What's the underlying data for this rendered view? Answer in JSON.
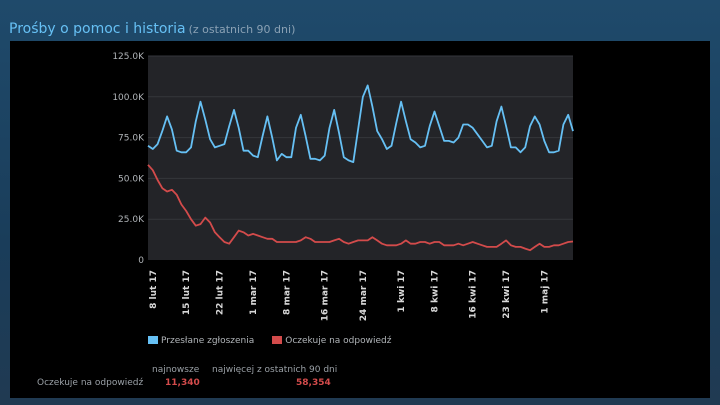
{
  "title": "Prośby o pomoc i historia",
  "subtitle": "(z ostatnich 90 dni)",
  "colors": {
    "submitted": "#66c0f4",
    "awaiting": "#d34b4b",
    "plot_bg": "#232428"
  },
  "chart_data": {
    "type": "line",
    "ylim": [
      0,
      125000
    ],
    "yticks": [
      "0",
      "25.0K",
      "50.0K",
      "75.0K",
      "100.0K",
      "125.0K"
    ],
    "ytick_values": [
      0,
      25000,
      50000,
      75000,
      100000,
      125000
    ],
    "grid": true,
    "legend_position": "bottom",
    "x_start": "2017-02-07",
    "xticks": [
      {
        "label": "8 lut 17",
        "day": 1
      },
      {
        "label": "15 lut 17",
        "day": 8
      },
      {
        "label": "22 lut 17",
        "day": 15
      },
      {
        "label": "1 mar 17",
        "day": 22
      },
      {
        "label": "8 mar 17",
        "day": 29
      },
      {
        "label": "16 mar 17",
        "day": 37
      },
      {
        "label": "24 mar 17",
        "day": 45
      },
      {
        "label": "1 kwi 17",
        "day": 53
      },
      {
        "label": "8 kwi 17",
        "day": 60
      },
      {
        "label": "16 kwi 17",
        "day": 68
      },
      {
        "label": "23 kwi 17",
        "day": 75
      },
      {
        "label": "1 maj 17",
        "day": 83
      }
    ],
    "series": [
      {
        "name": "Przesłane zgłoszenia",
        "unit": "K",
        "values": [
          70,
          68,
          71,
          79,
          88,
          80,
          67,
          66,
          66,
          69,
          85,
          97,
          86,
          74,
          69,
          70,
          71,
          82,
          92,
          81,
          67,
          67,
          64,
          63,
          76,
          88,
          75,
          61,
          65,
          63,
          63,
          81,
          89,
          76,
          62,
          62,
          61,
          64,
          81,
          92,
          78,
          63,
          61,
          60,
          80,
          100,
          107,
          94,
          79,
          74,
          68,
          70,
          84,
          97,
          85,
          74,
          72,
          69,
          70,
          82,
          91,
          82,
          73,
          73,
          72,
          75,
          83,
          83,
          81,
          77,
          73,
          69,
          70,
          85,
          94,
          82,
          69,
          69,
          66,
          69,
          82,
          88,
          83,
          73,
          66,
          66,
          67,
          83,
          89,
          79
        ]
      },
      {
        "name": "Oczekuje na odpowiedź",
        "unit": "K",
        "values": [
          58.354,
          55,
          49,
          44,
          42,
          43,
          40,
          34,
          30,
          25,
          21,
          22,
          26,
          23,
          17,
          14,
          11,
          10,
          14,
          18,
          17,
          15,
          16,
          15,
          14,
          13,
          13,
          11,
          11,
          11,
          11,
          11,
          12,
          14,
          13,
          11,
          11,
          11,
          11,
          12,
          13,
          11,
          10,
          11,
          12,
          12,
          12,
          14,
          12,
          10,
          9,
          9,
          9,
          10,
          12,
          10,
          10,
          11,
          11,
          10,
          11,
          11,
          9,
          9,
          9,
          10,
          9,
          10,
          11,
          10,
          9,
          8,
          8,
          8,
          10,
          12,
          9,
          8,
          8,
          7,
          6,
          8,
          10,
          8,
          8,
          9,
          9,
          10,
          11,
          11.34
        ]
      }
    ]
  },
  "stats": {
    "col_latest": "najnowsze",
    "col_max": "najwięcej z ostatnich 90 dni",
    "row_label": "Oczekuje na odpowiedź",
    "latest": "11,340",
    "max": "58,354"
  }
}
